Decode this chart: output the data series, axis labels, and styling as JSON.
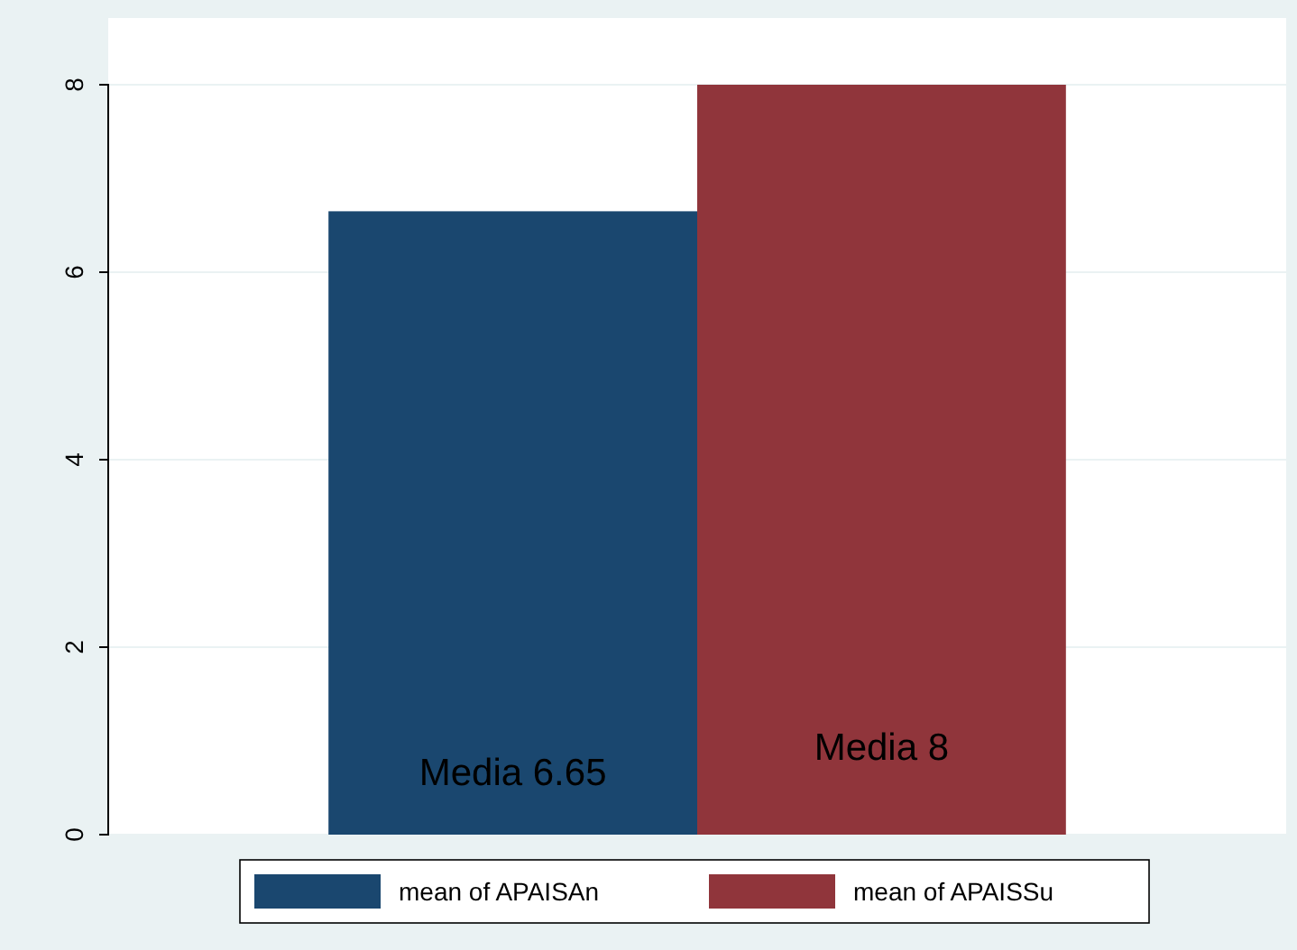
{
  "chart_data": {
    "type": "bar",
    "categories": [
      null
    ],
    "series": [
      {
        "name": "mean of APAISAn",
        "color": "#1a476f",
        "values": [
          6.65
        ]
      },
      {
        "name": "mean of APAISSu",
        "color": "#90353b",
        "values": [
          8
        ]
      }
    ],
    "ylim": [
      0,
      8
    ],
    "yticks": [
      0,
      2,
      4,
      6,
      8
    ],
    "grid": "y",
    "legend": "bottom",
    "annotations": [
      "Media 6.65",
      "Media 8"
    ]
  }
}
